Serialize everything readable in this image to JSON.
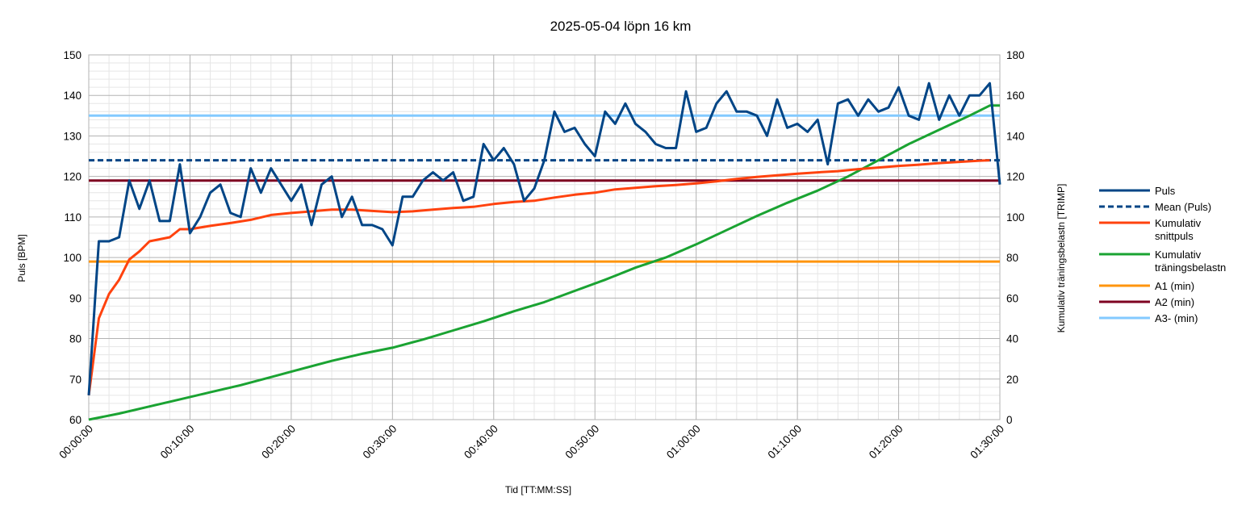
{
  "chart_data": {
    "type": "line",
    "title": "2025-05-04 löpn 16 km",
    "xlabel": "Tid [TT:MM:SS]",
    "ylabel": "Puls [BPM]",
    "y2label": "Kumulativ träningsbelastn [TRIMP]",
    "xlim": [
      0,
      90
    ],
    "ylim": [
      60,
      150
    ],
    "y2lim": [
      0,
      180
    ],
    "x_ticks": [
      "00:00:00",
      "00:10:00",
      "00:20:00",
      "00:30:00",
      "00:40:00",
      "00:50:00",
      "01:00:00",
      "01:10:00",
      "01:20:00",
      "01:30:00"
    ],
    "y_ticks": [
      "60",
      "70",
      "80",
      "90",
      "100",
      "110",
      "120",
      "130",
      "140",
      "150"
    ],
    "y2_ticks": [
      "0",
      "20",
      "40",
      "60",
      "80",
      "100",
      "120",
      "140",
      "160",
      "180"
    ],
    "grid": true,
    "legend_position": "right",
    "series": [
      {
        "name": "Puls",
        "axis": "left",
        "color": "#004586",
        "style": "solid",
        "x": [
          0,
          1,
          2,
          3,
          4,
          5,
          6,
          7,
          8,
          9,
          10,
          11,
          12,
          13,
          14,
          15,
          16,
          17,
          18,
          19,
          20,
          21,
          22,
          23,
          24,
          25,
          26,
          27,
          28,
          29,
          30,
          31,
          32,
          33,
          34,
          35,
          36,
          37,
          38,
          39,
          40,
          41,
          42,
          43,
          44,
          45,
          46,
          47,
          48,
          49,
          50,
          51,
          52,
          53,
          54,
          55,
          56,
          57,
          58,
          59,
          60,
          61,
          62,
          63,
          64,
          65,
          66,
          67,
          68,
          69,
          70,
          71,
          72,
          73,
          74,
          75,
          76,
          77,
          78,
          79,
          80,
          81,
          82,
          83,
          84,
          85,
          86,
          87,
          88,
          89,
          90
        ],
        "values": [
          66,
          104,
          104,
          105,
          119,
          112,
          119,
          109,
          109,
          123,
          106,
          110,
          116,
          118,
          111,
          110,
          122,
          116,
          122,
          118,
          114,
          118,
          108,
          118,
          120,
          110,
          115,
          108,
          108,
          107,
          103,
          115,
          115,
          119,
          121,
          119,
          121,
          114,
          115,
          128,
          124,
          127,
          123,
          114,
          117,
          124,
          136,
          131,
          132,
          128,
          125,
          136,
          133,
          138,
          133,
          131,
          128,
          127,
          127,
          141,
          131,
          132,
          138,
          141,
          136,
          136,
          135,
          130,
          139,
          132,
          133,
          131,
          134,
          123,
          138,
          139,
          135,
          139,
          136,
          137,
          142,
          135,
          134,
          143,
          134,
          140,
          135,
          140,
          140,
          143,
          118
        ]
      },
      {
        "name": "Mean (Puls)",
        "axis": "left",
        "color": "#004586",
        "style": "dashed",
        "x": [
          0,
          90
        ],
        "values": [
          124,
          124
        ]
      },
      {
        "name": "Kumulativ snittpuls",
        "axis": "left",
        "color": "#ff420e",
        "style": "solid",
        "x": [
          0,
          1,
          2,
          3,
          4,
          5,
          6,
          7,
          8,
          9,
          10,
          12,
          14,
          16,
          18,
          20,
          22,
          24,
          26,
          28,
          30,
          32,
          34,
          36,
          38,
          40,
          42,
          44,
          46,
          48,
          50,
          52,
          54,
          56,
          58,
          60,
          62,
          64,
          66,
          68,
          70,
          72,
          74,
          76,
          78,
          80,
          82,
          84,
          86,
          88,
          89
        ],
        "values": [
          66,
          85,
          91,
          94.5,
          99.5,
          101.5,
          104,
          104.5,
          105,
          107,
          107,
          107.8,
          108.5,
          109.3,
          110.5,
          111,
          111.4,
          111.8,
          111.8,
          111.5,
          111.2,
          111.4,
          111.8,
          112.2,
          112.5,
          113.2,
          113.7,
          114,
          114.8,
          115.5,
          116,
          116.8,
          117.2,
          117.6,
          117.9,
          118.3,
          118.8,
          119.4,
          119.9,
          120.3,
          120.7,
          121,
          121.3,
          121.8,
          122.2,
          122.6,
          122.9,
          123.3,
          123.6,
          123.9,
          124
        ]
      },
      {
        "name": "Kumulativ träningsbelastn",
        "axis": "right",
        "color": "#1aa332",
        "style": "solid",
        "x": [
          0,
          3,
          6,
          9,
          12,
          15,
          18,
          21,
          24,
          27,
          30,
          33,
          36,
          39,
          42,
          45,
          48,
          51,
          54,
          57,
          60,
          63,
          66,
          69,
          72,
          75,
          78,
          81,
          84,
          87,
          89,
          90
        ],
        "values": [
          0,
          3,
          6.5,
          10,
          13.5,
          17,
          21,
          25,
          29,
          32.5,
          35.5,
          39.5,
          44,
          48.5,
          53.5,
          58,
          63.5,
          69,
          75,
          80,
          86.5,
          93.5,
          100.5,
          107,
          113,
          120,
          128,
          136,
          143,
          150,
          155,
          155
        ]
      },
      {
        "name": "A1 (min)",
        "axis": "left",
        "color": "#ff950e",
        "style": "solid",
        "x": [
          0,
          90
        ],
        "values": [
          99,
          99
        ]
      },
      {
        "name": "A2 (min)",
        "axis": "left",
        "color": "#7e0021",
        "style": "solid",
        "x": [
          0,
          90
        ],
        "values": [
          119,
          119
        ]
      },
      {
        "name": "A3- (min)",
        "axis": "left",
        "color": "#83caff",
        "style": "solid",
        "x": [
          0,
          90
        ],
        "values": [
          135,
          135
        ]
      }
    ],
    "legend": [
      {
        "lines": [
          "Puls"
        ],
        "color": "#004586",
        "style": "solid"
      },
      {
        "lines": [
          "Mean (Puls)"
        ],
        "color": "#004586",
        "style": "dashed"
      },
      {
        "lines": [
          "Kumulativ",
          "snittpuls"
        ],
        "color": "#ff420e",
        "style": "solid"
      },
      {
        "lines": [
          "Kumulativ",
          "träningsbelastn"
        ],
        "color": "#1aa332",
        "style": "solid"
      },
      {
        "lines": [
          "A1 (min)"
        ],
        "color": "#ff950e",
        "style": "solid"
      },
      {
        "lines": [
          "A2 (min)"
        ],
        "color": "#7e0021",
        "style": "solid"
      },
      {
        "lines": [
          "A3- (min)"
        ],
        "color": "#83caff",
        "style": "solid"
      }
    ]
  }
}
